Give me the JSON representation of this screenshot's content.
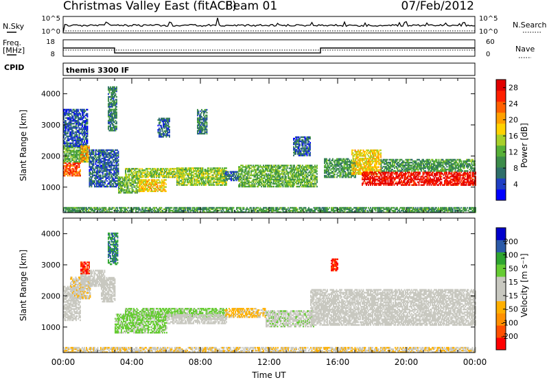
{
  "header": {
    "station": "Christmas Valley East (fitACF)",
    "beam": "Beam 01",
    "date": "07/Feb/2012"
  },
  "nsky_panel": {
    "left_label": "N.Sky",
    "right_label": "N.Search",
    "left_ticks": [
      "10^5",
      "10^0"
    ],
    "right_ticks": [
      "10^5",
      "10^0"
    ]
  },
  "freq_panel": {
    "left_label": "Freq.",
    "left_unit": "[MHz]",
    "right_label": "Nave",
    "left_ticks": [
      "18",
      "8"
    ],
    "right_ticks": [
      "60",
      "0"
    ],
    "freq_steps": [
      {
        "start_hour": 0,
        "end_hour": 3,
        "value": 13
      },
      {
        "start_hour": 3,
        "end_hour": 15,
        "value": 10
      },
      {
        "start_hour": 15,
        "end_hour": 24,
        "value": 13
      }
    ]
  },
  "cpid_panel": {
    "label": "CPID",
    "program": "themis 3300 IF"
  },
  "chart_data": [
    {
      "type": "heatmap",
      "title": "",
      "xlabel": "Time UT",
      "ylabel": "Slant Range [km]",
      "x_ticks": [
        "00:00",
        "04:00",
        "08:00",
        "12:00",
        "16:00",
        "20:00",
        "00:00"
      ],
      "xlim_hours": [
        0,
        24
      ],
      "y_ticks": [
        1000,
        2000,
        3000,
        4000
      ],
      "ylim": [
        180,
        4500
      ],
      "colorbar": {
        "label": "Power [dB]",
        "ticks": [
          "4",
          "8",
          "12",
          "16",
          "20",
          "24",
          "28"
        ],
        "range": [
          0,
          30
        ],
        "colors": [
          "#0000ff",
          "#1f3fc4",
          "#2f6f6a",
          "#3c8c4a",
          "#57b037",
          "#a8d02a",
          "#ffd200",
          "#ffa000",
          "#ff6000",
          "#ff2000",
          "#e00000"
        ]
      },
      "regions": [
        {
          "t0": 0.0,
          "t1": 1.0,
          "r0": 1350,
          "r1": 1800,
          "value": 24
        },
        {
          "t0": 0.0,
          "t1": 1.4,
          "r0": 1800,
          "r1": 2300,
          "value": 12
        },
        {
          "t0": 0.0,
          "t1": 1.4,
          "r0": 2300,
          "r1": 3500,
          "value": 5
        },
        {
          "t0": 1.0,
          "t1": 1.5,
          "r0": 1800,
          "r1": 2300,
          "value": 20
        },
        {
          "t0": 1.5,
          "t1": 3.2,
          "r0": 1000,
          "r1": 2200,
          "value": 6
        },
        {
          "t0": 2.6,
          "t1": 3.1,
          "r0": 2800,
          "r1": 4200,
          "value": 8
        },
        {
          "t0": 3.2,
          "t1": 4.4,
          "r0": 800,
          "r1": 1300,
          "value": 12
        },
        {
          "t0": 4.4,
          "t1": 6.0,
          "r0": 850,
          "r1": 1250,
          "value": 18
        },
        {
          "t0": 3.6,
          "t1": 7.0,
          "r0": 1300,
          "r1": 1600,
          "value": 14
        },
        {
          "t0": 5.5,
          "t1": 6.2,
          "r0": 2600,
          "r1": 3200,
          "value": 6
        },
        {
          "t0": 6.6,
          "t1": 9.5,
          "r0": 1050,
          "r1": 1600,
          "value": 14
        },
        {
          "t0": 7.8,
          "t1": 8.4,
          "r0": 2700,
          "r1": 3500,
          "value": 8
        },
        {
          "t0": 9.4,
          "t1": 10.2,
          "r0": 1200,
          "r1": 1500,
          "value": 6
        },
        {
          "t0": 10.2,
          "t1": 14.8,
          "r0": 1000,
          "r1": 1700,
          "value": 12
        },
        {
          "t0": 13.4,
          "t1": 14.4,
          "r0": 2000,
          "r1": 2600,
          "value": 6
        },
        {
          "t0": 15.2,
          "t1": 17.0,
          "r0": 1300,
          "r1": 1900,
          "value": 10
        },
        {
          "t0": 16.8,
          "t1": 18.5,
          "r0": 1400,
          "r1": 2200,
          "value": 18
        },
        {
          "t0": 17.4,
          "t1": 24.0,
          "r0": 1050,
          "r1": 1500,
          "value": 28
        },
        {
          "t0": 18.5,
          "t1": 24.0,
          "r0": 1500,
          "r1": 1900,
          "value": 10
        },
        {
          "t0": 0.0,
          "t1": 24.0,
          "r0": 180,
          "r1": 320,
          "value": 10
        }
      ]
    },
    {
      "type": "heatmap",
      "title": "",
      "xlabel": "Time UT",
      "ylabel": "Slant Range [km]",
      "x_ticks": [
        "00:00",
        "04:00",
        "08:00",
        "12:00",
        "16:00",
        "20:00",
        "00:00"
      ],
      "xlim_hours": [
        0,
        24
      ],
      "y_ticks": [
        1000,
        2000,
        3000,
        4000
      ],
      "ylim": [
        180,
        4500
      ],
      "colorbar": {
        "label": "Velocity [m s⁻¹]",
        "ticks": [
          "200",
          "100",
          "50",
          "15",
          "-15",
          "-50",
          "-100",
          "-200"
        ],
        "range": [
          -250,
          250
        ],
        "colors": [
          "#ff0000",
          "#ff5000",
          "#ff9000",
          "#ffb000",
          "#c8c8c0",
          "#c8c8c0",
          "#66cc33",
          "#2fa52f",
          "#2b5aa8",
          "#0000cc"
        ]
      },
      "regions": [
        {
          "t0": 0.0,
          "t1": 1.0,
          "r0": 1200,
          "r1": 2300,
          "value": 0
        },
        {
          "t0": 0.4,
          "t1": 1.6,
          "r0": 1900,
          "r1": 2600,
          "value": -40
        },
        {
          "t0": 1.0,
          "t1": 2.4,
          "r0": 2300,
          "r1": 2800,
          "value": 0
        },
        {
          "t0": 2.2,
          "t1": 3.0,
          "r0": 1800,
          "r1": 2600,
          "value": -20
        },
        {
          "t0": 3.0,
          "t1": 6.0,
          "r0": 800,
          "r1": 1400,
          "value": 60
        },
        {
          "t0": 3.6,
          "t1": 9.5,
          "r0": 1300,
          "r1": 1600,
          "value": 60
        },
        {
          "t0": 6.0,
          "t1": 9.5,
          "r0": 1100,
          "r1": 1400,
          "value": 30
        },
        {
          "t0": 9.4,
          "t1": 11.8,
          "r0": 1300,
          "r1": 1600,
          "value": -60
        },
        {
          "t0": 11.8,
          "t1": 14.6,
          "r0": 1000,
          "r1": 1500,
          "value": 40
        },
        {
          "t0": 14.4,
          "t1": 24.0,
          "r0": 1050,
          "r1": 2200,
          "value": 0
        },
        {
          "t0": 2.6,
          "t1": 3.2,
          "r0": 3000,
          "r1": 4000,
          "value": 150
        },
        {
          "t0": 1.0,
          "t1": 1.5,
          "r0": 2700,
          "r1": 3100,
          "value": -200
        },
        {
          "t0": 15.6,
          "t1": 16.0,
          "r0": 2800,
          "r1": 3200,
          "value": -200
        },
        {
          "t0": 0.0,
          "t1": 24.0,
          "r0": 180,
          "r1": 360,
          "value": -45
        }
      ]
    }
  ]
}
